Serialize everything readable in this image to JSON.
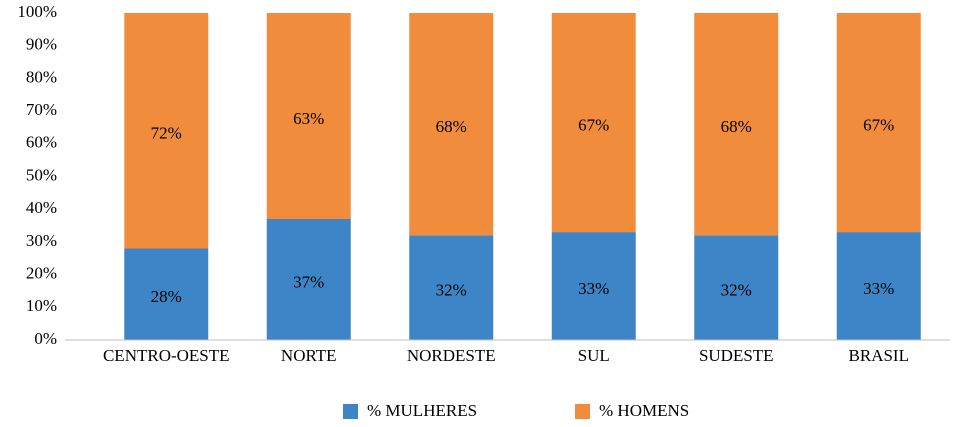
{
  "chart_data": {
    "type": "stacked_bar",
    "categories": [
      "CENTRO-OESTE",
      "NORTE",
      "NORDESTE",
      "SUL",
      "SUDESTE",
      "BRASIL"
    ],
    "series": [
      {
        "name": "% MULHERES",
        "color": "#3d85c6",
        "values": [
          28,
          37,
          32,
          33,
          32,
          33
        ],
        "value_labels": [
          "28%",
          "37%",
          "32%",
          "33%",
          "32%",
          "33%"
        ]
      },
      {
        "name": "% HOMENS",
        "color": "#f08c3c",
        "values": [
          72,
          63,
          68,
          67,
          68,
          67
        ],
        "value_labels": [
          "72%",
          "63%",
          "68%",
          "67%",
          "68%",
          "67%"
        ]
      }
    ],
    "ylim": [
      0,
      100
    ],
    "yticks": [
      {
        "value": 0,
        "label": "0%"
      },
      {
        "value": 10,
        "label": "10%"
      },
      {
        "value": 20,
        "label": "20%"
      },
      {
        "value": 30,
        "label": "30%"
      },
      {
        "value": 40,
        "label": "40%"
      },
      {
        "value": 50,
        "label": "50%"
      },
      {
        "value": 60,
        "label": "60%"
      },
      {
        "value": 70,
        "label": "70%"
      },
      {
        "value": 80,
        "label": "80%"
      },
      {
        "value": 90,
        "label": "90%"
      },
      {
        "value": 100,
        "label": "100%"
      }
    ],
    "grid": false,
    "legend": "bottom"
  }
}
